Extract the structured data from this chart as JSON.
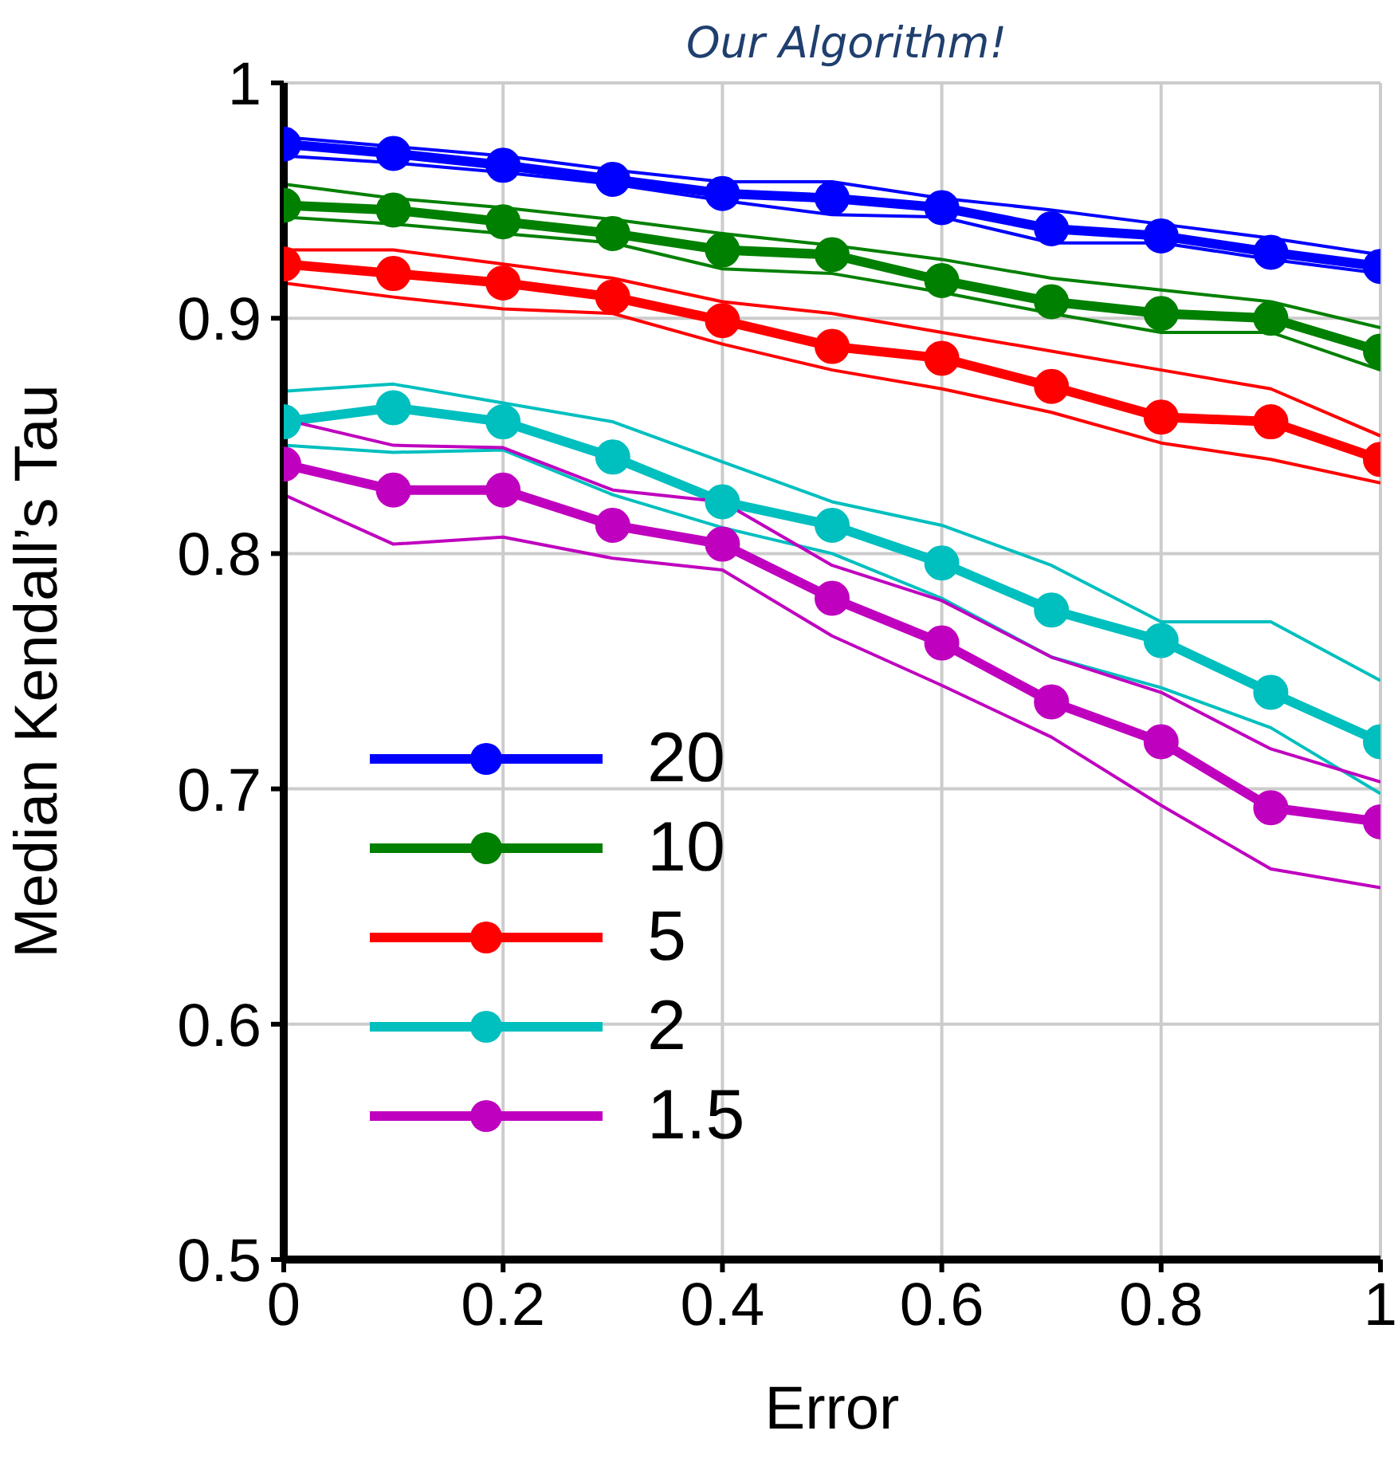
{
  "chart_data": {
    "type": "line",
    "title": "Our Algorithm!",
    "xlabel": "Error",
    "ylabel": "Median Kendall’s Tau",
    "x": [
      0,
      0.1,
      0.2,
      0.3,
      0.4,
      0.5,
      0.6,
      0.7,
      0.8,
      0.9,
      1
    ],
    "series": [
      {
        "color": "#0000ff",
        "marker": "none",
        "values": [
          0.977,
          0.973,
          0.969,
          0.963,
          0.958,
          0.958,
          0.951,
          0.946,
          0.94,
          0.934,
          0.927
        ]
      },
      {
        "color": "#0000ff",
        "marker": "none",
        "values": [
          0.969,
          0.966,
          0.962,
          0.957,
          0.95,
          0.944,
          0.943,
          0.932,
          0.932,
          0.925,
          0.919
        ]
      },
      {
        "color": "#008000",
        "marker": "none",
        "values": [
          0.957,
          0.951,
          0.947,
          0.942,
          0.936,
          0.931,
          0.925,
          0.917,
          0.912,
          0.907,
          0.896
        ]
      },
      {
        "color": "#008000",
        "marker": "none",
        "values": [
          0.943,
          0.94,
          0.936,
          0.932,
          0.921,
          0.919,
          0.911,
          0.902,
          0.894,
          0.894,
          0.878
        ]
      },
      {
        "color": "#ff0000",
        "marker": "none",
        "values": [
          0.929,
          0.929,
          0.923,
          0.917,
          0.907,
          0.902,
          0.894,
          0.886,
          0.878,
          0.87,
          0.85
        ]
      },
      {
        "color": "#ff0000",
        "marker": "none",
        "values": [
          0.915,
          0.909,
          0.904,
          0.902,
          0.889,
          0.878,
          0.87,
          0.86,
          0.847,
          0.84,
          0.83
        ]
      },
      {
        "color": "#00bfbf",
        "marker": "none",
        "values": [
          0.869,
          0.872,
          0.864,
          0.856,
          0.839,
          0.822,
          0.812,
          0.795,
          0.771,
          0.771,
          0.746
        ]
      },
      {
        "color": "#00bfbf",
        "marker": "none",
        "values": [
          0.846,
          0.843,
          0.844,
          0.825,
          0.811,
          0.8,
          0.781,
          0.756,
          0.743,
          0.726,
          0.698
        ]
      },
      {
        "color": "#bf00bf",
        "marker": "none",
        "values": [
          0.857,
          0.846,
          0.845,
          0.827,
          0.822,
          0.795,
          0.78,
          0.756,
          0.741,
          0.717,
          0.703
        ]
      },
      {
        "color": "#bf00bf",
        "marker": "none",
        "values": [
          0.825,
          0.804,
          0.807,
          0.798,
          0.793,
          0.765,
          0.744,
          0.722,
          0.693,
          0.666,
          0.658
        ]
      },
      {
        "name": "20",
        "color": "#0000ff",
        "values": [
          0.974,
          0.97,
          0.965,
          0.959,
          0.953,
          0.951,
          0.947,
          0.938,
          0.935,
          0.928,
          0.922
        ]
      },
      {
        "name": "10",
        "color": "#008000",
        "values": [
          0.948,
          0.946,
          0.941,
          0.936,
          0.929,
          0.927,
          0.916,
          0.907,
          0.902,
          0.9,
          0.886
        ]
      },
      {
        "name": "5",
        "color": "#ff0000",
        "values": [
          0.923,
          0.919,
          0.915,
          0.909,
          0.899,
          0.888,
          0.883,
          0.871,
          0.858,
          0.856,
          0.84
        ]
      },
      {
        "name": "2",
        "color": "#00bfbf",
        "values": [
          0.856,
          0.862,
          0.856,
          0.841,
          0.822,
          0.812,
          0.796,
          0.776,
          0.763,
          0.741,
          0.72
        ]
      },
      {
        "name": "1.5",
        "color": "#bf00bf",
        "values": [
          0.838,
          0.827,
          0.827,
          0.812,
          0.804,
          0.781,
          0.762,
          0.737,
          0.72,
          0.692,
          0.686
        ]
      }
    ],
    "xlim": [
      0,
      1
    ],
    "xticks": [
      0,
      0.2,
      0.4,
      0.6,
      0.8,
      1
    ],
    "ylim": [
      0.5,
      1
    ],
    "yticks": [
      0.5,
      0.6,
      0.7,
      0.8,
      0.9,
      1
    ],
    "grid": true,
    "legend": "bottom left",
    "marker": "circle",
    "line_style": "solid"
  }
}
